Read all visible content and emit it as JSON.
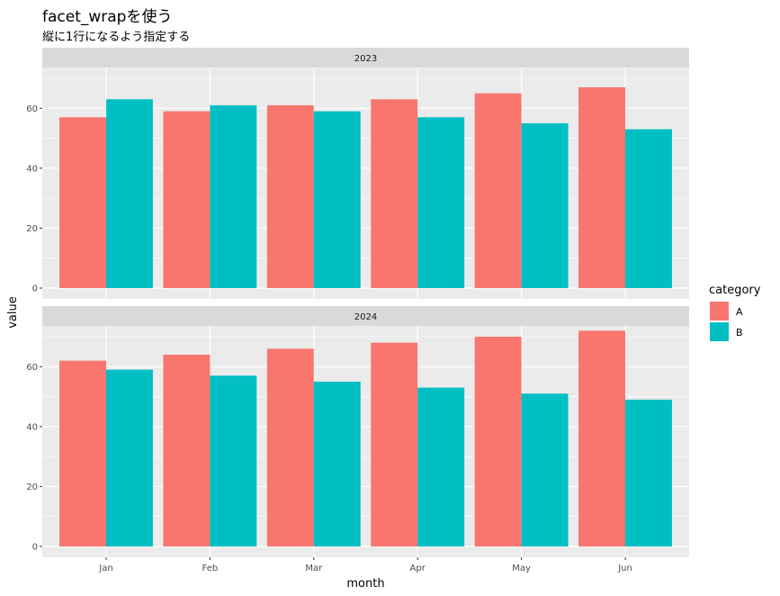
{
  "title": "facet_wrapを使う",
  "subtitle": "縦に1行になるよう指定する",
  "colors": {
    "A": "#F8766D",
    "B": "#00BFC4",
    "panel_bg": "#EBEBEB",
    "strip_bg": "#D9D9D9",
    "grid": "#FFFFFF"
  },
  "chart_data": {
    "type": "bar",
    "categories": [
      "Jan",
      "Feb",
      "Mar",
      "Apr",
      "May",
      "Jun"
    ],
    "xlabel": "month",
    "ylabel": "value",
    "ylim": [
      0,
      73
    ],
    "yticks": [
      0,
      20,
      40,
      60
    ],
    "legend": {
      "title": "category",
      "position": "right",
      "entries": [
        "A",
        "B"
      ]
    },
    "facets": [
      {
        "label": "2023",
        "series": [
          {
            "name": "A",
            "values": [
              57,
              59,
              61,
              63,
              65,
              67
            ]
          },
          {
            "name": "B",
            "values": [
              63,
              61,
              59,
              57,
              55,
              53
            ]
          }
        ]
      },
      {
        "label": "2024",
        "series": [
          {
            "name": "A",
            "values": [
              62,
              64,
              66,
              68,
              70,
              72
            ]
          },
          {
            "name": "B",
            "values": [
              59,
              57,
              55,
              53,
              51,
              49
            ]
          }
        ]
      }
    ]
  }
}
